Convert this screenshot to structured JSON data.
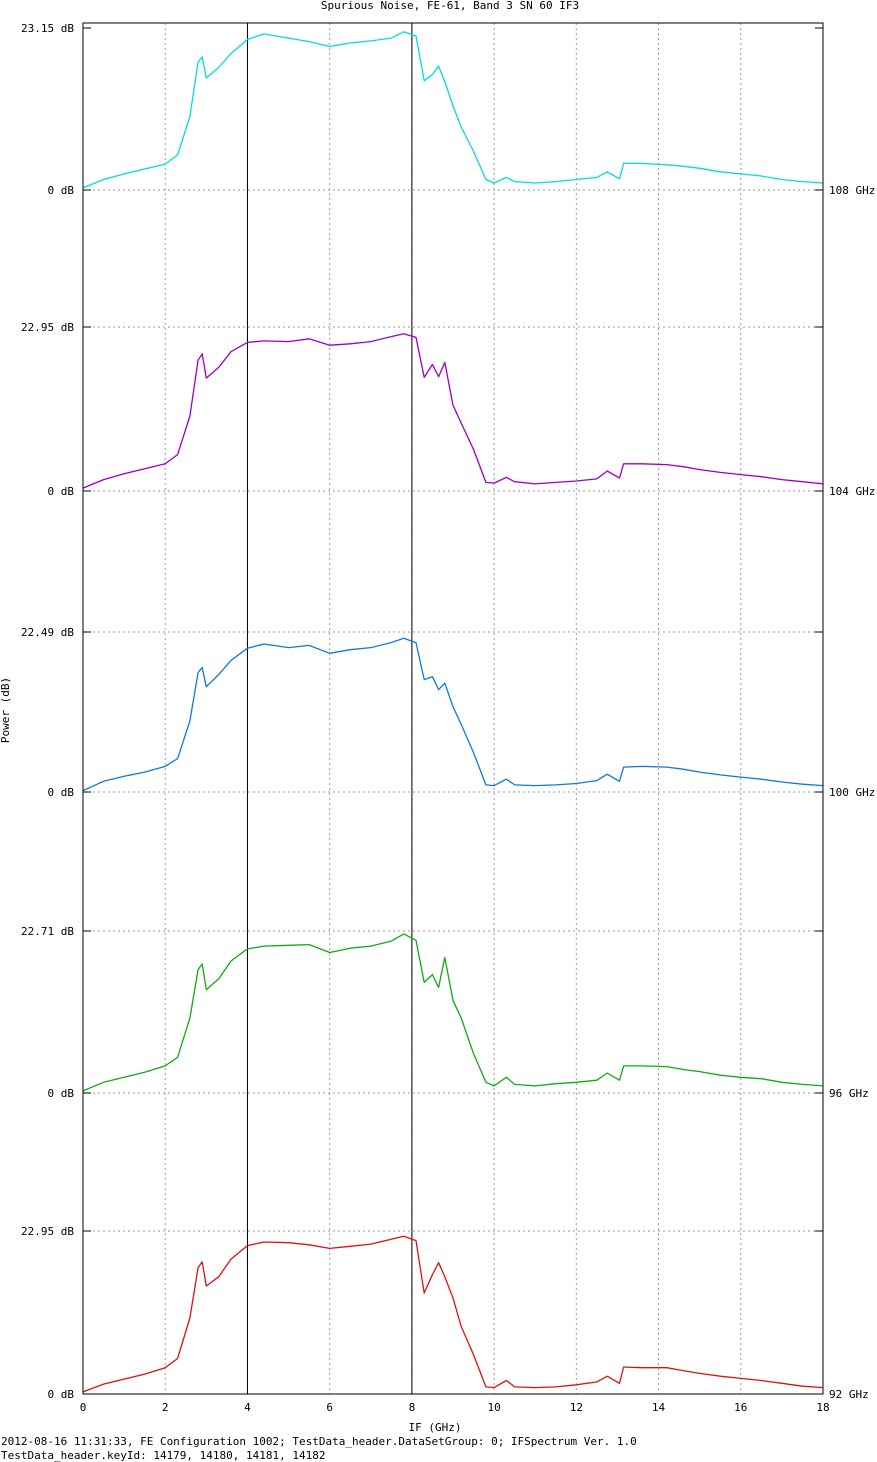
{
  "chart_data": {
    "type": "line",
    "title": "Spurious Noise, FE-61, Band 3 SN 60 IF3",
    "xlabel": "IF (GHz)",
    "ylabel": "Power (dB)",
    "xlim": [
      0,
      18
    ],
    "x_ticks": [
      "0",
      "2",
      "4",
      "6",
      "8",
      "10",
      "12",
      "14",
      "16",
      "18"
    ],
    "grid": true,
    "vertical_markers": [
      4,
      8
    ],
    "footer": [
      "2012-08-16 11:31:33, FE Configuration 1002; TestData_header.DataSetGroup: 0; IFSpectrum Ver. 1.0",
      "TestData_header.keyId: 14179, 14180, 14181, 14182"
    ],
    "panels": [
      {
        "lo_label": "108 GHz",
        "color": "#00dddd",
        "ymax_label": "23.15 dB",
        "ymin_label": "0 dB",
        "ylim": [
          0,
          23.15
        ],
        "x": [
          0,
          0.5,
          1,
          1.5,
          2,
          2.3,
          2.6,
          2.8,
          2.9,
          3.0,
          3.3,
          3.6,
          4.0,
          4.4,
          5.0,
          5.5,
          6.0,
          6.5,
          7.0,
          7.5,
          7.8,
          8.1,
          8.3,
          8.5,
          8.65,
          8.8,
          9.0,
          9.2,
          9.5,
          9.8,
          10.0,
          10.3,
          10.5,
          11.0,
          11.5,
          12.0,
          12.5,
          12.75,
          13.05,
          13.15,
          13.6,
          14.2,
          14.6,
          15.0,
          15.5,
          16.0,
          16.5,
          17.0,
          17.5,
          18.0
        ],
        "y": [
          0.3,
          1.5,
          2.3,
          3.0,
          3.7,
          5.0,
          10.5,
          18.3,
          19.0,
          16.0,
          17.5,
          19.5,
          21.5,
          22.3,
          21.7,
          21.2,
          20.5,
          21.0,
          21.3,
          21.7,
          22.6,
          22.0,
          15.6,
          16.5,
          17.7,
          15.5,
          12.0,
          9.0,
          5.5,
          1.5,
          1.0,
          1.8,
          1.2,
          1.0,
          1.2,
          1.5,
          1.8,
          2.6,
          1.6,
          3.8,
          3.8,
          3.6,
          3.4,
          3.1,
          2.6,
          2.3,
          2.0,
          1.5,
          1.2,
          1.0
        ]
      },
      {
        "lo_label": "104 GHz",
        "color": "#9900cc",
        "ymax_label": "22.95 dB",
        "ymin_label": "0 dB",
        "ylim": [
          0,
          22.95
        ],
        "x": [
          0,
          0.5,
          1,
          1.5,
          2,
          2.3,
          2.6,
          2.8,
          2.9,
          3.0,
          3.3,
          3.6,
          4.0,
          4.4,
          5.0,
          5.5,
          6.0,
          6.5,
          7.0,
          7.5,
          7.8,
          8.1,
          8.3,
          8.5,
          8.65,
          8.8,
          9.0,
          9.2,
          9.5,
          9.8,
          10.0,
          10.3,
          10.5,
          11.0,
          11.5,
          12.0,
          12.5,
          12.75,
          13.05,
          13.15,
          13.6,
          14.2,
          14.6,
          15.0,
          15.5,
          16.0,
          16.5,
          17.0,
          17.5,
          18.0
        ],
        "y": [
          0.4,
          1.6,
          2.4,
          3.1,
          3.8,
          5.1,
          10.5,
          18.3,
          19.2,
          15.8,
          17.3,
          19.5,
          20.8,
          21.0,
          20.9,
          21.3,
          20.4,
          20.6,
          20.9,
          21.6,
          22.0,
          21.5,
          15.9,
          17.7,
          16.0,
          18.0,
          12.0,
          9.5,
          5.8,
          1.2,
          1.1,
          1.9,
          1.3,
          1.0,
          1.2,
          1.4,
          1.7,
          2.8,
          1.8,
          3.8,
          3.8,
          3.7,
          3.4,
          3.0,
          2.6,
          2.3,
          2.0,
          1.6,
          1.3,
          1.0
        ]
      },
      {
        "lo_label": "100 GHz",
        "color": "#1177dd",
        "ymax_label": "22.49 dB",
        "ymin_label": "0 dB",
        "ylim": [
          0,
          22.49
        ],
        "x": [
          0,
          0.5,
          1,
          1.5,
          2,
          2.3,
          2.6,
          2.8,
          2.9,
          3.0,
          3.3,
          3.6,
          4.0,
          4.4,
          5.0,
          5.5,
          6.0,
          6.5,
          7.0,
          7.5,
          7.8,
          8.1,
          8.3,
          8.5,
          8.65,
          8.8,
          9.0,
          9.2,
          9.5,
          9.8,
          10.0,
          10.3,
          10.5,
          11.0,
          11.5,
          12.0,
          12.5,
          12.75,
          13.05,
          13.15,
          13.6,
          14.2,
          14.6,
          15.0,
          15.5,
          16.0,
          16.5,
          17.0,
          17.5,
          18.0
        ],
        "y": [
          0.2,
          1.5,
          2.2,
          2.8,
          3.6,
          4.7,
          10.0,
          16.8,
          17.5,
          14.8,
          16.5,
          18.5,
          20.2,
          20.8,
          20.3,
          20.6,
          19.5,
          20.0,
          20.3,
          21.0,
          21.6,
          21.0,
          15.8,
          16.2,
          14.4,
          15.3,
          12.0,
          9.5,
          5.5,
          1.0,
          0.9,
          1.8,
          1.0,
          0.9,
          1.0,
          1.2,
          1.6,
          2.5,
          1.5,
          3.5,
          3.6,
          3.5,
          3.2,
          2.8,
          2.4,
          2.1,
          1.8,
          1.4,
          1.1,
          0.9
        ]
      },
      {
        "lo_label": "96 GHz",
        "color": "#11aa11",
        "ymax_label": "22.71 dB",
        "ymin_label": "0 dB",
        "ylim": [
          0,
          22.71
        ],
        "x": [
          0,
          0.5,
          1,
          1.5,
          2,
          2.3,
          2.6,
          2.8,
          2.9,
          3.0,
          3.3,
          3.6,
          4.0,
          4.4,
          5.0,
          5.5,
          6.0,
          6.5,
          7.0,
          7.5,
          7.8,
          8.1,
          8.3,
          8.5,
          8.65,
          8.8,
          9.0,
          9.2,
          9.5,
          9.8,
          10.0,
          10.3,
          10.5,
          11.0,
          11.5,
          12.0,
          12.5,
          12.75,
          13.05,
          13.15,
          13.6,
          14.2,
          14.6,
          15.0,
          15.5,
          16.0,
          16.5,
          17.0,
          17.5,
          18.0
        ],
        "y": [
          0.3,
          1.5,
          2.2,
          2.9,
          3.8,
          5.0,
          10.5,
          17.3,
          18.1,
          14.5,
          16.0,
          18.5,
          20.2,
          20.6,
          20.7,
          20.8,
          19.7,
          20.3,
          20.6,
          21.3,
          22.3,
          21.4,
          15.5,
          16.6,
          14.8,
          19.0,
          13.0,
          10.5,
          5.5,
          1.5,
          1.0,
          2.2,
          1.2,
          1.0,
          1.3,
          1.5,
          1.8,
          2.8,
          1.8,
          3.8,
          3.8,
          3.7,
          3.3,
          3.0,
          2.5,
          2.2,
          2.0,
          1.5,
          1.2,
          1.0
        ]
      },
      {
        "lo_label": "92 GHz",
        "color": "#dd1111",
        "ymax_label": "22.95 dB",
        "ymin_label": "0 dB",
        "ylim": [
          0,
          22.95
        ],
        "x": [
          0,
          0.5,
          1,
          1.5,
          2,
          2.3,
          2.6,
          2.8,
          2.9,
          3.0,
          3.3,
          3.6,
          4.0,
          4.4,
          5.0,
          5.5,
          6.0,
          6.5,
          7.0,
          7.5,
          7.8,
          8.1,
          8.3,
          8.5,
          8.65,
          8.8,
          9.0,
          9.2,
          9.5,
          9.8,
          10.0,
          10.3,
          10.5,
          11.0,
          11.5,
          12.0,
          12.5,
          12.75,
          13.05,
          13.15,
          13.6,
          14.2,
          14.6,
          15.0,
          15.5,
          16.0,
          16.5,
          17.0,
          17.5,
          18.0
        ],
        "y": [
          0.3,
          1.4,
          2.1,
          2.8,
          3.7,
          5.0,
          10.7,
          17.8,
          18.6,
          15.2,
          16.5,
          19.0,
          20.9,
          21.4,
          21.3,
          21.0,
          20.5,
          20.8,
          21.1,
          21.8,
          22.2,
          21.6,
          14.2,
          16.8,
          18.5,
          16.5,
          13.5,
          9.5,
          5.5,
          1.0,
          0.9,
          1.9,
          1.0,
          0.9,
          1.0,
          1.3,
          1.7,
          2.5,
          1.5,
          3.8,
          3.7,
          3.7,
          3.3,
          2.9,
          2.5,
          2.2,
          1.9,
          1.5,
          1.1,
          0.9
        ]
      }
    ]
  }
}
